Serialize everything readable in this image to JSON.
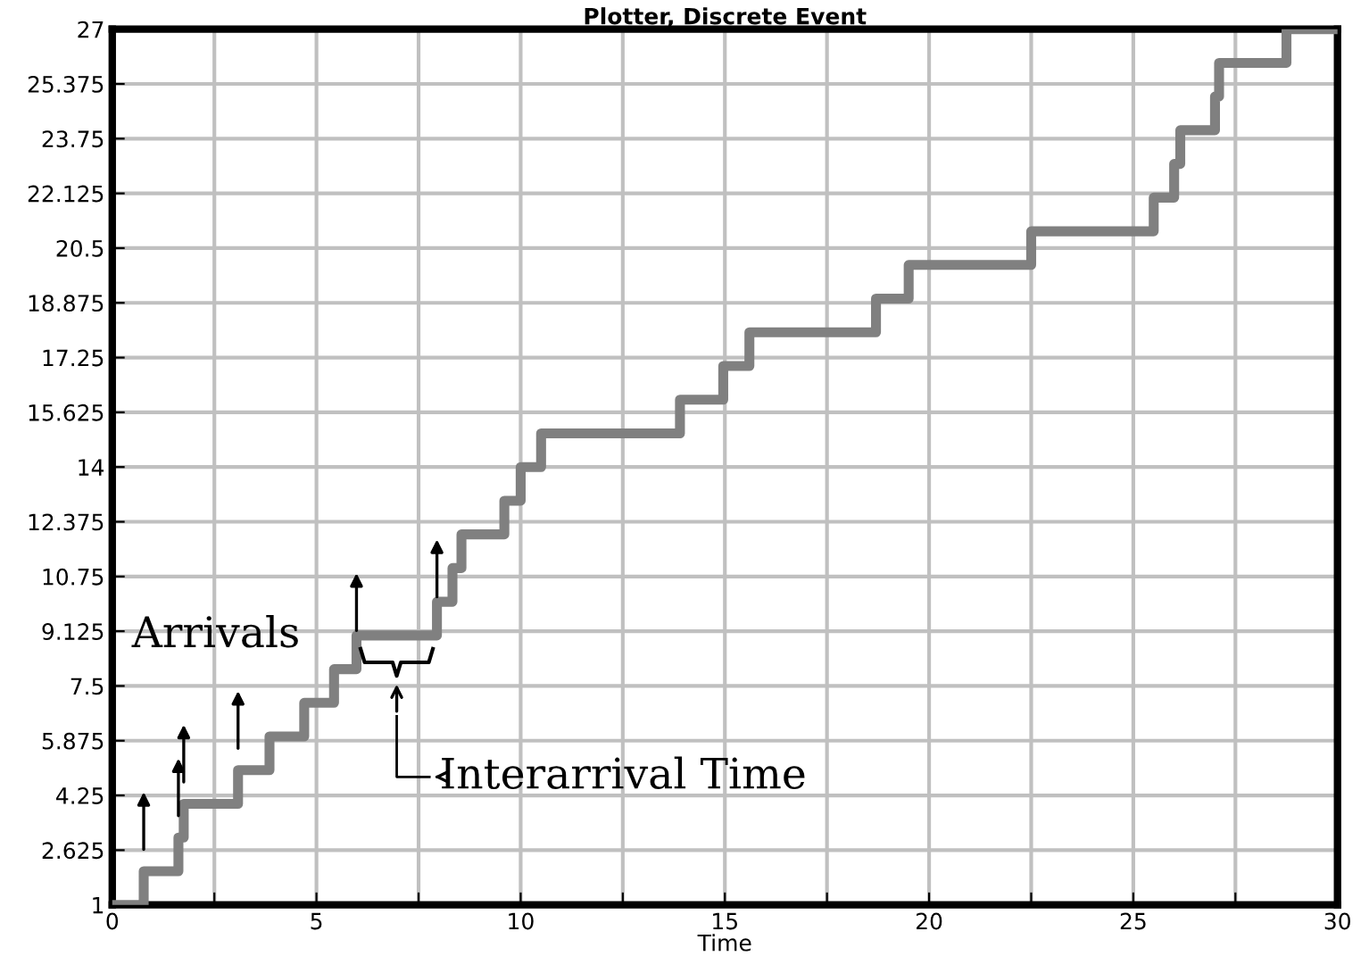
{
  "chart_data": {
    "type": "step",
    "title": "Plotter, Discrete Event",
    "xlabel": "Time",
    "x": [
      0,
      0.77,
      1.62,
      1.75,
      3.08,
      3.85,
      4.7,
      5.43,
      5.98,
      7.95,
      8.33,
      8.55,
      9.6,
      10.0,
      10.5,
      13.9,
      14.96,
      15.6,
      18.7,
      19.5,
      22.5,
      25.5,
      26.0,
      26.15,
      27.0,
      27.1,
      28.75,
      30
    ],
    "series": [
      {
        "color": "#808080",
        "values": [
          1,
          2,
          3,
          4,
          5,
          6,
          7,
          8,
          9,
          10,
          11,
          12,
          13,
          14,
          15,
          16,
          17,
          18,
          19,
          20,
          21,
          22,
          23,
          24,
          25,
          26,
          27,
          27
        ]
      }
    ],
    "xlim": [
      0,
      30
    ],
    "ylim": [
      1,
      27
    ],
    "xticks": [
      0,
      {
        "value": 2.5,
        "label": null
      },
      5,
      {
        "value": 7.5,
        "label": null
      },
      10,
      {
        "value": 12.5,
        "label": null
      },
      15,
      {
        "value": 17.5,
        "label": null
      },
      20,
      {
        "value": 22.5,
        "label": null
      },
      25,
      {
        "value": 27.5,
        "label": null
      },
      30
    ],
    "yticks": [
      1,
      2.625,
      4.25,
      5.875,
      7.5,
      9.125,
      10.75,
      12.375,
      14,
      15.625,
      17.25,
      18.875,
      20.5,
      22.125,
      23.75,
      25.375,
      27
    ],
    "grid": true,
    "line_style": "solid",
    "marker": "none",
    "annotations": [
      "Arrivals",
      "Interarrival Time"
    ]
  }
}
